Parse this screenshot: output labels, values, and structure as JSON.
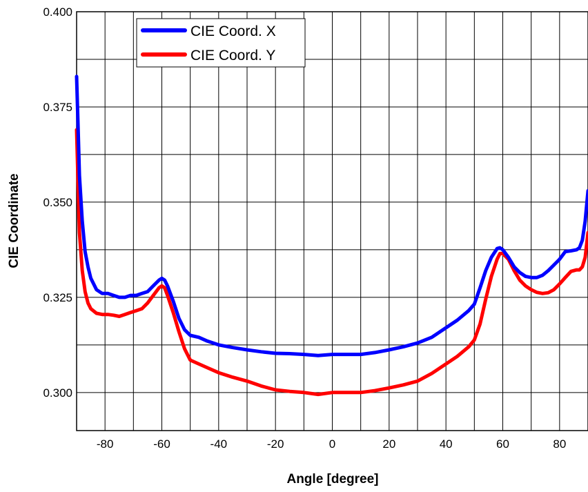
{
  "chart_data": {
    "type": "line",
    "title": "",
    "xlabel": "Angle [degree]",
    "ylabel": "CIE  Coordinate",
    "xlim": [
      -90,
      90
    ],
    "ylim": [
      0.29,
      0.4
    ],
    "x_ticks": [
      -80,
      -60,
      -40,
      -20,
      0,
      20,
      40,
      60,
      80
    ],
    "x_tick_labels": [
      "-80",
      "-60",
      "-40",
      "-20",
      "0",
      "20",
      "40",
      "60",
      "80"
    ],
    "y_ticks": [
      0.3,
      0.325,
      0.35,
      0.375,
      0.4
    ],
    "y_tick_labels": [
      "0.300",
      "0.325",
      "0.350",
      "0.375",
      "0.400"
    ],
    "grid": true,
    "legend_position": "top-left",
    "series": [
      {
        "name": "CIE Coord. X",
        "color": "#0000ff",
        "x": [
          -90,
          -89.5,
          -89,
          -88,
          -87,
          -86,
          -85,
          -83,
          -81,
          -79,
          -77,
          -75,
          -73,
          -71,
          -69,
          -67,
          -65,
          -63,
          -61,
          -60,
          -59,
          -58,
          -56,
          -54,
          -52,
          -50,
          -47,
          -44,
          -40,
          -35,
          -30,
          -25,
          -20,
          -15,
          -10,
          -5,
          0,
          5,
          10,
          15,
          20,
          25,
          30,
          35,
          40,
          44,
          48,
          50,
          52,
          54,
          56,
          58,
          59,
          60,
          62,
          64,
          66,
          68,
          70,
          72,
          74,
          76,
          78,
          80,
          82,
          84,
          86,
          87,
          88,
          89,
          90
        ],
        "y": [
          0.383,
          0.37,
          0.357,
          0.345,
          0.337,
          0.333,
          0.33,
          0.327,
          0.326,
          0.326,
          0.3255,
          0.325,
          0.325,
          0.3255,
          0.3255,
          0.326,
          0.3265,
          0.328,
          0.3295,
          0.33,
          0.3295,
          0.328,
          0.324,
          0.3195,
          0.3165,
          0.315,
          0.3145,
          0.3135,
          0.3125,
          0.3118,
          0.3112,
          0.3107,
          0.3103,
          0.3102,
          0.31,
          0.3097,
          0.31,
          0.31,
          0.31,
          0.3105,
          0.3112,
          0.312,
          0.313,
          0.3145,
          0.317,
          0.319,
          0.3215,
          0.3232,
          0.3275,
          0.332,
          0.3355,
          0.3378,
          0.338,
          0.3375,
          0.3355,
          0.333,
          0.3315,
          0.3305,
          0.3302,
          0.3302,
          0.3308,
          0.332,
          0.3335,
          0.335,
          0.337,
          0.3372,
          0.3375,
          0.338,
          0.34,
          0.345,
          0.353
        ]
      },
      {
        "name": "CIE Coord. Y",
        "color": "#ff0000",
        "x": [
          -90,
          -89.5,
          -89,
          -88,
          -87,
          -86,
          -85,
          -83,
          -81,
          -79,
          -77,
          -75,
          -73,
          -71,
          -69,
          -67,
          -65,
          -63,
          -61,
          -60,
          -59,
          -58,
          -56,
          -54,
          -52,
          -50,
          -47,
          -44,
          -40,
          -35,
          -30,
          -25,
          -20,
          -15,
          -10,
          -5,
          0,
          5,
          10,
          15,
          20,
          25,
          30,
          35,
          40,
          44,
          48,
          50,
          52,
          54,
          56,
          58,
          59,
          60,
          62,
          64,
          66,
          68,
          70,
          72,
          74,
          76,
          78,
          80,
          82,
          84,
          86,
          87,
          88,
          89,
          90
        ],
        "y": [
          0.369,
          0.355,
          0.342,
          0.332,
          0.3265,
          0.3235,
          0.322,
          0.3208,
          0.3205,
          0.3205,
          0.3203,
          0.32,
          0.3205,
          0.321,
          0.3215,
          0.322,
          0.3235,
          0.3255,
          0.3275,
          0.328,
          0.3275,
          0.3255,
          0.321,
          0.316,
          0.3115,
          0.3085,
          0.3075,
          0.3065,
          0.3052,
          0.304,
          0.303,
          0.3017,
          0.3007,
          0.3003,
          0.3,
          0.2995,
          0.3,
          0.3,
          0.3,
          0.3005,
          0.3012,
          0.302,
          0.303,
          0.305,
          0.3075,
          0.3095,
          0.312,
          0.3138,
          0.318,
          0.3245,
          0.3305,
          0.335,
          0.3365,
          0.3365,
          0.335,
          0.332,
          0.3295,
          0.328,
          0.327,
          0.3263,
          0.326,
          0.3262,
          0.327,
          0.3285,
          0.3302,
          0.3318,
          0.3322,
          0.3322,
          0.333,
          0.3355,
          0.342
        ]
      }
    ]
  }
}
